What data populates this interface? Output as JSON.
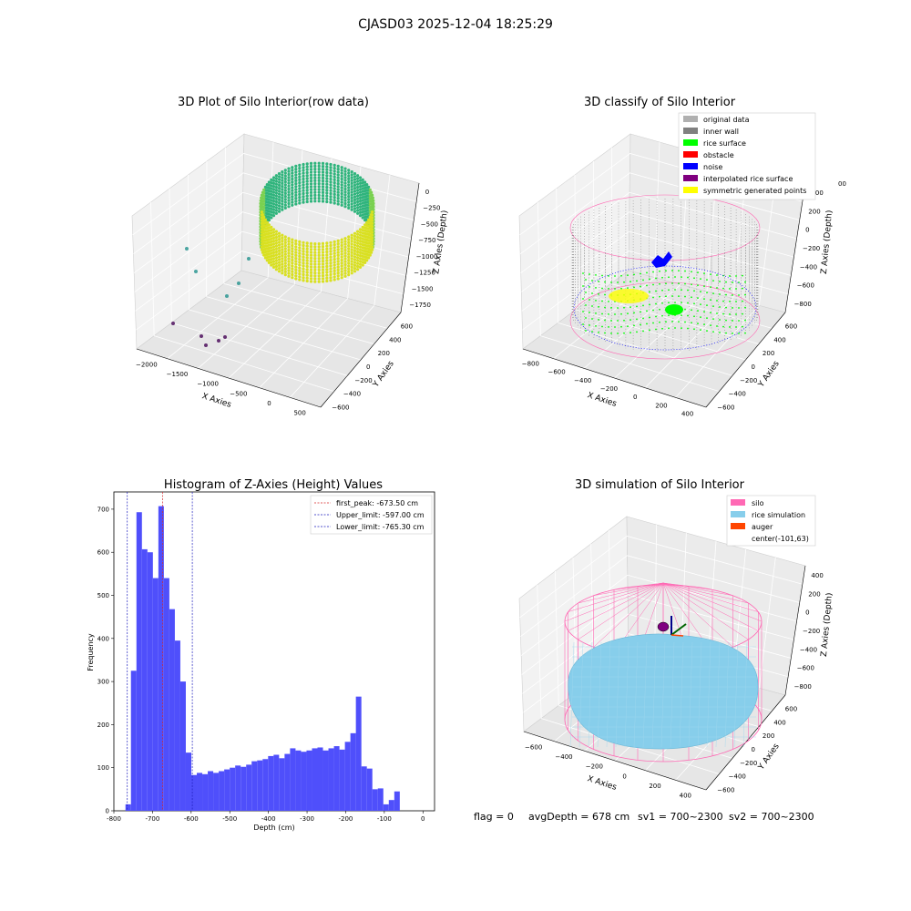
{
  "suptitle": "CJASD03 2025-12-04 18:25:29",
  "colors": {
    "hist_bar": "#4f4ffb",
    "peak_line": "#d62728",
    "limit_line": "#1f1fbf",
    "silo": "#ff69b4",
    "rice_sim": "#87ceeb",
    "auger": "#ff4500",
    "center": "#800080",
    "wall": "#808080",
    "rice_surface": "#00ff00",
    "noise": "#0000ff",
    "symmetric": "#ffff00"
  },
  "chart_data": [
    {
      "type": "scatter",
      "projection": "3d",
      "title": "3D Plot of Silo Interior(row data)",
      "xlabel": "X Axies",
      "ylabel": "Y Axies",
      "zlabel": "Z Axies (Depth)",
      "xticks": [
        "−2000",
        "−1500",
        "−1000",
        "−500",
        "0",
        "500"
      ],
      "yticks": [
        "−600",
        "−400",
        "−200",
        "0",
        "200",
        "400",
        "600"
      ],
      "zticks": [
        "0",
        "−250",
        "−500",
        "−750",
        "−1000",
        "−1250",
        "−1500",
        "−1750"
      ],
      "colormap": "viridis"
    },
    {
      "type": "scatter",
      "projection": "3d",
      "title": "3D classify of Silo Interior",
      "xlabel": "X Axies",
      "ylabel": "Y Axies",
      "zlabel": "Z Axies (Depth)",
      "xticks": [
        "−800",
        "−600",
        "−400",
        "−200",
        "0",
        "200",
        "400"
      ],
      "yticks": [
        "−600",
        "−400",
        "−200",
        "0",
        "200",
        "400",
        "600"
      ],
      "zticks": [
        "400",
        "200",
        "0",
        "−200",
        "−400",
        "−600",
        "−800"
      ],
      "zticks_partial": [
        "00"
      ],
      "legend": [
        {
          "label": "original data",
          "color": "#b0b0b0"
        },
        {
          "label": "inner wall",
          "color": "#808080"
        },
        {
          "label": "rice surface",
          "color": "#00ff00"
        },
        {
          "label": "obstacle",
          "color": "#ff0000"
        },
        {
          "label": "noise",
          "color": "#0000ff"
        },
        {
          "label": "interpolated rice surface",
          "color": "#800080"
        },
        {
          "label": "symmetric generated points",
          "color": "#ffff00"
        }
      ],
      "legend_loc": "upper right"
    },
    {
      "type": "bar",
      "title": "Histogram of Z-Axies (Height) Values",
      "xlabel": "Depth (cm)",
      "ylabel": "Frequency",
      "xlim": [
        -800,
        30
      ],
      "ylim": [
        0,
        740
      ],
      "xticks": [
        -800,
        -700,
        -600,
        -500,
        -400,
        -300,
        -200,
        -100,
        0
      ],
      "yticks": [
        0,
        100,
        200,
        300,
        400,
        500,
        600,
        700
      ],
      "bin_start": -770,
      "bin_width": 14.2,
      "values": [
        15,
        325,
        693,
        607,
        600,
        540,
        707,
        540,
        468,
        395,
        300,
        135,
        83,
        88,
        85,
        92,
        88,
        92,
        96,
        100,
        105,
        102,
        107,
        115,
        117,
        120,
        127,
        130,
        122,
        132,
        145,
        140,
        137,
        140,
        145,
        147,
        140,
        145,
        150,
        142,
        160,
        180,
        265,
        103,
        98,
        50,
        52,
        15,
        25,
        45
      ],
      "vlines": [
        {
          "x": -673.5,
          "label": "first_peak: -673.50 cm",
          "color": "#d62728"
        },
        {
          "x": -597.0,
          "label": "Upper_limit: -597.00 cm",
          "color": "#1f1fbf"
        },
        {
          "x": -765.3,
          "label": "Lower_limit: -765.30 cm",
          "color": "#1f1fbf"
        }
      ],
      "legend_loc": "upper right"
    },
    {
      "type": "surface",
      "projection": "3d",
      "title": "3D simulation of Silo Interior",
      "xlabel": "X Axies",
      "ylabel": "Y Axies",
      "zlabel": "Z Axies (Depth)",
      "xticks": [
        "−600",
        "−400",
        "−200",
        "0",
        "200",
        "400"
      ],
      "yticks": [
        "−600",
        "−400",
        "−200",
        "0",
        "200",
        "400",
        "600"
      ],
      "zticks": [
        "400",
        "200",
        "0",
        "−200",
        "−400",
        "−600",
        "−800"
      ],
      "legend": [
        {
          "label": "silo",
          "color": "#ff69b4"
        },
        {
          "label": "rice simulation",
          "color": "#87ceeb"
        },
        {
          "label": "auger",
          "color": "#ff4500"
        },
        {
          "label": "center(-101,63)",
          "color": ""
        }
      ],
      "legend_loc": "upper right"
    }
  ],
  "footer": {
    "flag": "flag = 0",
    "avg_depth": "avgDepth = 678 cm",
    "sv1": "sv1 = 700~2300",
    "sv2": "sv2 = 700~2300"
  }
}
